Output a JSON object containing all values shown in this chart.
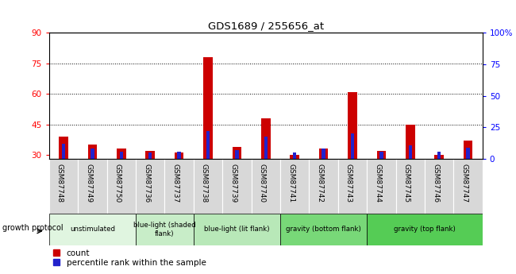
{
  "title": "GDS1689 / 255656_at",
  "samples": [
    "GSM87748",
    "GSM87749",
    "GSM87750",
    "GSM87736",
    "GSM87737",
    "GSM87738",
    "GSM87739",
    "GSM87740",
    "GSM87741",
    "GSM87742",
    "GSM87743",
    "GSM87744",
    "GSM87745",
    "GSM87746",
    "GSM87747"
  ],
  "counts": [
    39,
    35,
    33,
    32,
    31,
    78,
    34,
    48,
    30,
    33,
    61,
    32,
    45,
    30,
    37
  ],
  "percentiles": [
    12,
    8,
    6,
    5,
    6,
    22,
    7,
    18,
    5,
    8,
    20,
    6,
    11,
    6,
    9
  ],
  "ylim_left": [
    28,
    90
  ],
  "yticks_left": [
    30,
    45,
    60,
    75,
    90
  ],
  "ylim_right": [
    0,
    100
  ],
  "yticks_right": [
    0,
    25,
    50,
    75,
    100
  ],
  "yright_labels": [
    "0",
    "25",
    "50",
    "75",
    "100%"
  ],
  "bar_color_red": "#cc0000",
  "bar_color_blue": "#2222cc",
  "xtick_bg": "#d8d8d8",
  "groups": [
    {
      "label": "unstimulated",
      "start": 0,
      "end": 3,
      "color": "#e0f5e0"
    },
    {
      "label": "blue-light (shaded\nflank)",
      "start": 3,
      "end": 5,
      "color": "#c8edc8"
    },
    {
      "label": "blue-light (lit flank)",
      "start": 5,
      "end": 8,
      "color": "#b8e8b8"
    },
    {
      "label": "gravity (bottom flank)",
      "start": 8,
      "end": 11,
      "color": "#78d878"
    },
    {
      "label": "gravity (top flank)",
      "start": 11,
      "end": 15,
      "color": "#55cc55"
    }
  ],
  "legend_label_red": "count",
  "legend_label_blue": "percentile rank within the sample",
  "growth_protocol_label": "growth protocol"
}
